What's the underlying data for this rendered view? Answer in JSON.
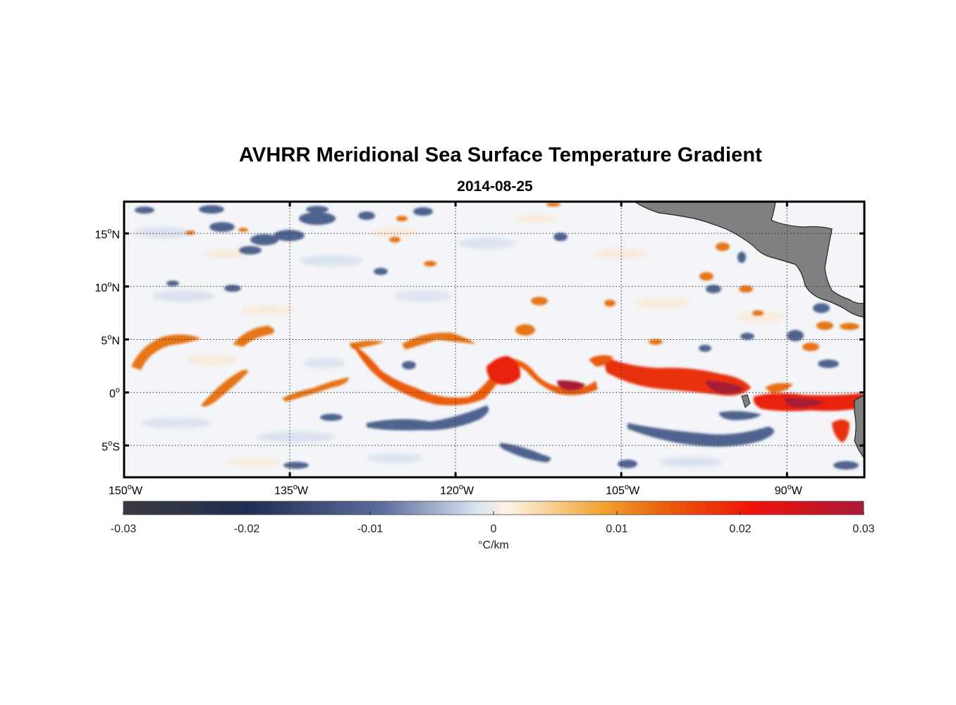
{
  "title": "AVHRR Meridional Sea Surface Temperature Gradient",
  "subtitle": "2014-08-25",
  "map": {
    "lon_range": [
      -150,
      -83
    ],
    "lat_range": [
      -8,
      18
    ],
    "lat_ticks": [
      {
        "value": 15,
        "label": "15",
        "suffix": "N"
      },
      {
        "value": 10,
        "label": "10",
        "suffix": "N"
      },
      {
        "value": 5,
        "label": "5",
        "suffix": "N"
      },
      {
        "value": 0,
        "label": "0",
        "suffix": ""
      },
      {
        "value": -5,
        "label": "5",
        "suffix": "S"
      }
    ],
    "lon_ticks": [
      {
        "value": -150,
        "label": "150",
        "suffix": "W"
      },
      {
        "value": -135,
        "label": "135",
        "suffix": "W"
      },
      {
        "value": -120,
        "label": "120",
        "suffix": "W"
      },
      {
        "value": -105,
        "label": "105",
        "suffix": "W"
      },
      {
        "value": -90,
        "label": "90",
        "suffix": "W"
      }
    ],
    "grid": "dotted",
    "land_color": "#808080"
  },
  "colorbar": {
    "unit": "°C/km",
    "range": [
      -0.03,
      0.03
    ],
    "ticks": [
      "-0.03",
      "-0.02",
      "-0.01",
      "0",
      "0.01",
      "0.02",
      "0.03"
    ],
    "colors": [
      "#3a3a3e",
      "#1f2e52",
      "#5a6e9c",
      "#dce6f2",
      "#fcf3e3",
      "#f2a22f",
      "#e8600c",
      "#f0120a",
      "#a8193a"
    ]
  }
}
